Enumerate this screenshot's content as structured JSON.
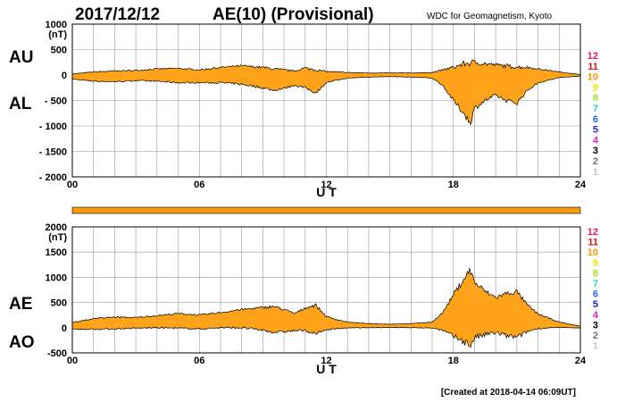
{
  "header": {
    "date": "2017/12/12",
    "title": "AE(10) (Provisional)",
    "source": "WDC for Geomagnetism, Kyoto"
  },
  "footer": {
    "created": "[Created at 2018-04-14 06:09UT]"
  },
  "legend": {
    "items": [
      {
        "label": "12",
        "color": "#e8176c"
      },
      {
        "label": "11",
        "color": "#d01818"
      },
      {
        "label": "10",
        "color": "#f29a00"
      },
      {
        "label": "9",
        "color": "#f6e400"
      },
      {
        "label": "8",
        "color": "#a6e21a"
      },
      {
        "label": "7",
        "color": "#22d0dc"
      },
      {
        "label": "6",
        "color": "#1f6cf0"
      },
      {
        "label": "5",
        "color": "#2a1cc0"
      },
      {
        "label": "4",
        "color": "#d020d0"
      },
      {
        "label": "3",
        "color": "#000000"
      },
      {
        "label": "2",
        "color": "#707070"
      },
      {
        "label": "1",
        "color": "#c8c8c8"
      }
    ]
  },
  "colors": {
    "fill": "#ffa31a",
    "outline": "#000000",
    "grid": "#999999",
    "status_bar": "#f39c12"
  },
  "chart_data": [
    {
      "type": "area",
      "name": "AU/AL",
      "xlabel": "U T",
      "ylabel": "(nT)",
      "xlim": [
        0,
        24
      ],
      "ylim": [
        -2000,
        1000
      ],
      "xticks": [
        "00",
        "06",
        "12",
        "18",
        "24"
      ],
      "yticks": [
        "1000",
        "500",
        "0",
        "- 500",
        "- 1000",
        "- 1500",
        "- 2000"
      ],
      "labels": {
        "upper": "AU",
        "lower": "AL"
      },
      "x": [
        0,
        1,
        2,
        3,
        4,
        5,
        6,
        7,
        8,
        9,
        9.5,
        10,
        10.5,
        11,
        11.5,
        12,
        12.5,
        13,
        14,
        15,
        16,
        17,
        17.5,
        18,
        18.5,
        18.8,
        19,
        19.5,
        20,
        20.5,
        21,
        21.5,
        22,
        23,
        24
      ],
      "series": [
        {
          "name": "AU",
          "values": [
            20,
            60,
            80,
            90,
            120,
            130,
            100,
            150,
            180,
            150,
            120,
            100,
            80,
            140,
            100,
            70,
            60,
            50,
            40,
            40,
            40,
            50,
            100,
            150,
            220,
            240,
            250,
            220,
            200,
            180,
            160,
            150,
            120,
            60,
            10
          ]
        },
        {
          "name": "AL",
          "values": [
            -80,
            -120,
            -130,
            -110,
            -120,
            -150,
            -150,
            -150,
            -180,
            -250,
            -300,
            -260,
            -200,
            -250,
            -350,
            -150,
            -100,
            -60,
            -40,
            -30,
            -40,
            -60,
            -200,
            -500,
            -750,
            -950,
            -650,
            -500,
            -400,
            -500,
            -550,
            -300,
            -150,
            -50,
            -20
          ]
        }
      ]
    },
    {
      "type": "area",
      "name": "AE/AO",
      "xlabel": "U T",
      "ylabel": "(nT)",
      "xlim": [
        0,
        24
      ],
      "ylim": [
        -500,
        2000
      ],
      "xticks": [
        "00",
        "06",
        "12",
        "18",
        "24"
      ],
      "yticks": [
        "2000",
        "1500",
        "1000",
        "500",
        "0",
        "-500"
      ],
      "labels": {
        "upper": "AE",
        "lower": "AO"
      },
      "x": [
        0,
        1,
        2,
        3,
        4,
        5,
        6,
        7,
        8,
        9,
        9.5,
        10,
        10.5,
        11,
        11.5,
        12,
        12.5,
        13,
        14,
        15,
        16,
        17,
        17.5,
        18,
        18.5,
        18.8,
        19,
        19.5,
        20,
        20.5,
        21,
        21.5,
        22,
        23,
        24
      ],
      "series": [
        {
          "name": "AE",
          "values": [
            100,
            180,
            210,
            200,
            240,
            280,
            250,
            300,
            360,
            400,
            420,
            360,
            280,
            390,
            450,
            220,
            160,
            110,
            80,
            70,
            80,
            110,
            300,
            650,
            970,
            1150,
            900,
            720,
            600,
            680,
            710,
            450,
            270,
            110,
            30
          ]
        },
        {
          "name": "AO",
          "values": [
            -30,
            -30,
            -25,
            -10,
            0,
            -10,
            -25,
            0,
            0,
            -50,
            -90,
            -80,
            -60,
            -55,
            -125,
            -40,
            -20,
            -5,
            0,
            5,
            0,
            -5,
            -50,
            -175,
            -265,
            -355,
            -200,
            -140,
            -100,
            -160,
            -195,
            -75,
            -15,
            5,
            -5
          ]
        }
      ]
    }
  ]
}
